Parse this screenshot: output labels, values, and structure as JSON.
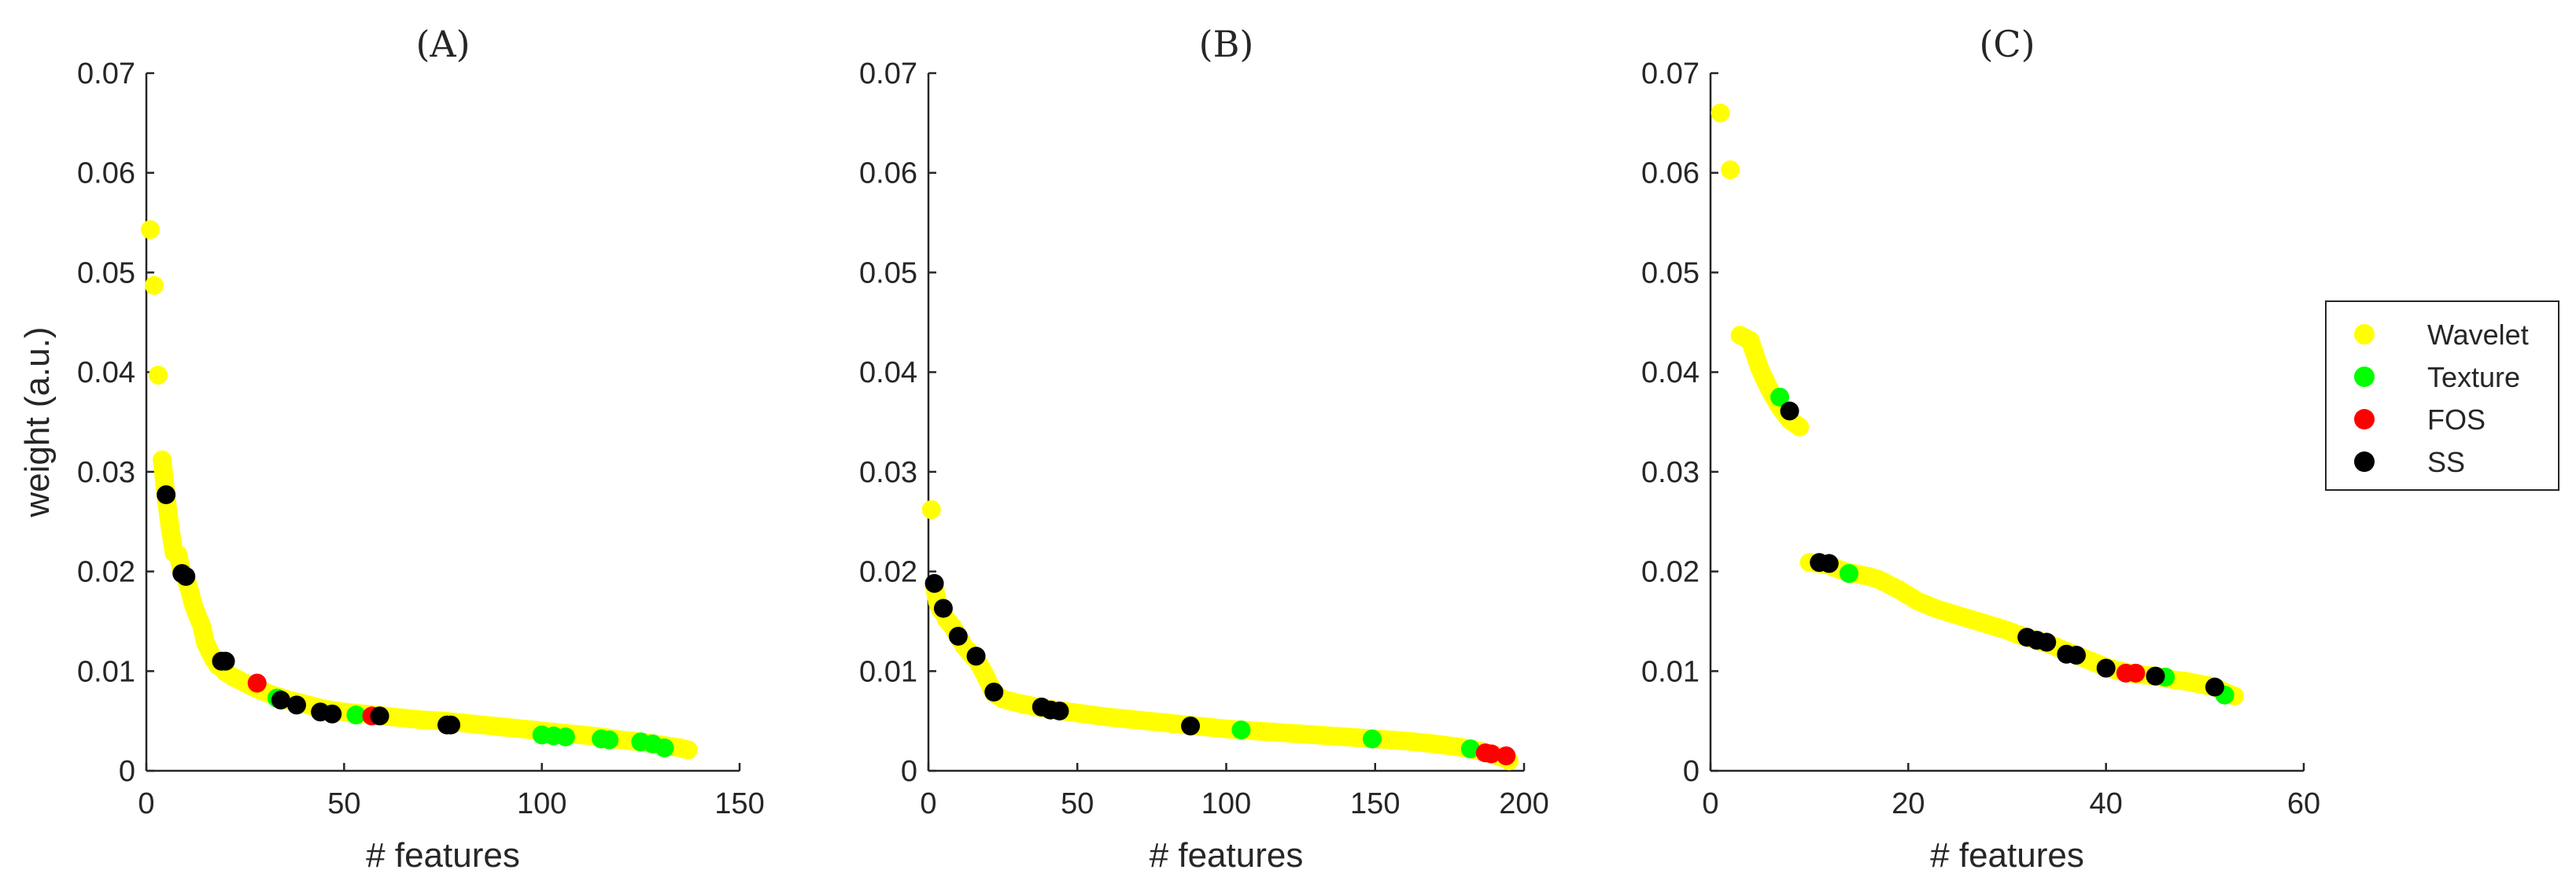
{
  "colors": {
    "Wavelet": "#ffff00",
    "Texture": "#00ff00",
    "FOS": "#ff0000",
    "SS": "#000000"
  },
  "legend": {
    "entries": [
      "Wavelet",
      "Texture",
      "FOS",
      "SS"
    ],
    "placement": "right"
  },
  "chart_data": [
    {
      "type": "scatter",
      "title": "(A)",
      "xlabel": "# features",
      "ylabel": "weight (a.u.)",
      "xlim": [
        0,
        150
      ],
      "ylim": [
        0,
        0.07
      ],
      "xticks": [
        0,
        50,
        100,
        150
      ],
      "yticks": [
        0,
        0.01,
        0.02,
        0.03,
        0.04,
        0.05,
        0.06,
        0.07
      ],
      "curve": {
        "name": "Wavelet",
        "x": [
          1,
          2,
          3,
          4,
          5,
          6,
          7,
          8,
          9,
          10,
          11,
          12,
          13,
          14,
          15,
          16,
          17,
          18,
          19,
          20,
          22,
          25,
          28,
          32,
          36,
          40,
          45,
          50,
          55,
          60,
          65,
          70,
          75,
          80,
          85,
          90,
          95,
          100,
          105,
          110,
          115,
          120,
          125,
          130,
          135,
          137
        ],
        "y": [
          0.0543,
          0.0487,
          0.0397,
          0.0312,
          0.0275,
          0.0244,
          0.0219,
          0.0217,
          0.0199,
          0.0193,
          0.018,
          0.0165,
          0.0155,
          0.0145,
          0.0128,
          0.012,
          0.0112,
          0.0106,
          0.0103,
          0.0099,
          0.0094,
          0.0088,
          0.0082,
          0.0076,
          0.0071,
          0.0067,
          0.0062,
          0.0059,
          0.0057,
          0.0055,
          0.0053,
          0.0051,
          0.005,
          0.0048,
          0.0046,
          0.0044,
          0.0042,
          0.004,
          0.0038,
          0.0036,
          0.0034,
          0.0031,
          0.0029,
          0.0026,
          0.0023,
          0.0021
        ]
      },
      "series": [
        {
          "name": "Texture",
          "x": [
            33,
            53,
            100,
            103,
            106,
            115,
            117,
            125,
            128,
            131
          ],
          "y": [
            0.0073,
            0.0056,
            0.0036,
            0.0035,
            0.0034,
            0.0032,
            0.0031,
            0.0029,
            0.0027,
            0.0023
          ]
        },
        {
          "name": "FOS",
          "x": [
            28,
            57
          ],
          "y": [
            0.0088,
            0.0055
          ]
        },
        {
          "name": "SS",
          "x": [
            5,
            9,
            10,
            19,
            20,
            34,
            38,
            44,
            47,
            59,
            76,
            77
          ],
          "y": [
            0.0277,
            0.0198,
            0.0195,
            0.011,
            0.011,
            0.0071,
            0.0066,
            0.0059,
            0.0057,
            0.0055,
            0.0046,
            0.0046
          ]
        }
      ]
    },
    {
      "type": "scatter",
      "title": "(B)",
      "xlabel": "# features",
      "ylabel": "",
      "xlim": [
        0,
        200
      ],
      "ylim": [
        0,
        0.07
      ],
      "xticks": [
        0,
        50,
        100,
        150,
        200
      ],
      "yticks": [
        0,
        0.01,
        0.02,
        0.03,
        0.04,
        0.05,
        0.06,
        0.07
      ],
      "curve": {
        "name": "Wavelet",
        "x": [
          1,
          2,
          3,
          4,
          5,
          6,
          8,
          10,
          12,
          14,
          16,
          18,
          20,
          22,
          25,
          30,
          35,
          40,
          45,
          50,
          60,
          70,
          80,
          90,
          100,
          110,
          120,
          130,
          140,
          150,
          160,
          170,
          180,
          185,
          190,
          193,
          195
        ],
        "y": [
          0.0262,
          0.0185,
          0.017,
          0.0162,
          0.0158,
          0.0152,
          0.0145,
          0.0135,
          0.0125,
          0.0118,
          0.0112,
          0.0102,
          0.009,
          0.0078,
          0.0072,
          0.0068,
          0.0065,
          0.0062,
          0.006,
          0.0058,
          0.0054,
          0.0051,
          0.0048,
          0.0045,
          0.0042,
          0.004,
          0.0038,
          0.0036,
          0.0034,
          0.0032,
          0.003,
          0.0027,
          0.0023,
          0.002,
          0.0016,
          0.0013,
          0.001
        ]
      },
      "series": [
        {
          "name": "Texture",
          "x": [
            105,
            149,
            182
          ],
          "y": [
            0.0041,
            0.0032,
            0.0022
          ]
        },
        {
          "name": "FOS",
          "x": [
            187,
            189,
            194
          ],
          "y": [
            0.0018,
            0.0017,
            0.0015
          ]
        },
        {
          "name": "SS",
          "x": [
            2,
            5,
            10,
            16,
            22,
            38,
            41,
            44,
            88
          ],
          "y": [
            0.0188,
            0.0163,
            0.0135,
            0.0115,
            0.0079,
            0.0064,
            0.0061,
            0.006,
            0.0045
          ]
        }
      ]
    },
    {
      "type": "scatter",
      "title": "(C)",
      "xlabel": "# features",
      "ylabel": "",
      "xlim": [
        0,
        60
      ],
      "ylim": [
        0,
        0.07
      ],
      "xticks": [
        0,
        20,
        40,
        60
      ],
      "yticks": [
        0,
        0.01,
        0.02,
        0.03,
        0.04,
        0.05,
        0.06,
        0.07
      ],
      "curve": {
        "name": "Wavelet",
        "x": [
          1,
          2,
          3,
          4,
          5,
          6,
          7,
          8,
          9,
          10,
          11,
          12,
          13,
          14,
          15,
          16,
          17,
          18,
          19,
          20,
          21,
          22,
          23,
          24,
          25,
          26,
          27,
          28,
          29,
          30,
          31,
          32,
          33,
          34,
          35,
          36,
          37,
          38,
          39,
          40,
          41,
          42,
          43,
          44,
          45,
          46,
          47,
          48,
          49,
          50,
          51,
          52,
          53
        ],
        "y": [
          0.066,
          0.0603,
          0.0437,
          0.0432,
          0.0403,
          0.0382,
          0.0365,
          0.0352,
          0.0345,
          0.0209,
          0.0208,
          0.0206,
          0.0202,
          0.0199,
          0.0197,
          0.0195,
          0.0192,
          0.0187,
          0.0182,
          0.0176,
          0.017,
          0.0166,
          0.0162,
          0.0159,
          0.0156,
          0.0153,
          0.015,
          0.0147,
          0.0144,
          0.0141,
          0.0137,
          0.0134,
          0.0131,
          0.0128,
          0.0124,
          0.012,
          0.0116,
          0.0112,
          0.0108,
          0.0104,
          0.0101,
          0.0099,
          0.0097,
          0.0096,
          0.0095,
          0.0093,
          0.0091,
          0.009,
          0.0088,
          0.0086,
          0.0084,
          0.0079,
          0.0075
        ]
      },
      "series": [
        {
          "name": "Texture",
          "x": [
            7,
            14,
            46,
            52
          ],
          "y": [
            0.0375,
            0.0198,
            0.0094,
            0.0076
          ]
        },
        {
          "name": "FOS",
          "x": [
            42,
            43
          ],
          "y": [
            0.0098,
            0.0098
          ]
        },
        {
          "name": "SS",
          "x": [
            8,
            11,
            12,
            32,
            33,
            34,
            36,
            37,
            40,
            45,
            51
          ],
          "y": [
            0.0361,
            0.0209,
            0.0208,
            0.0134,
            0.0131,
            0.0129,
            0.0117,
            0.0116,
            0.0103,
            0.0095,
            0.0084
          ]
        }
      ]
    }
  ]
}
